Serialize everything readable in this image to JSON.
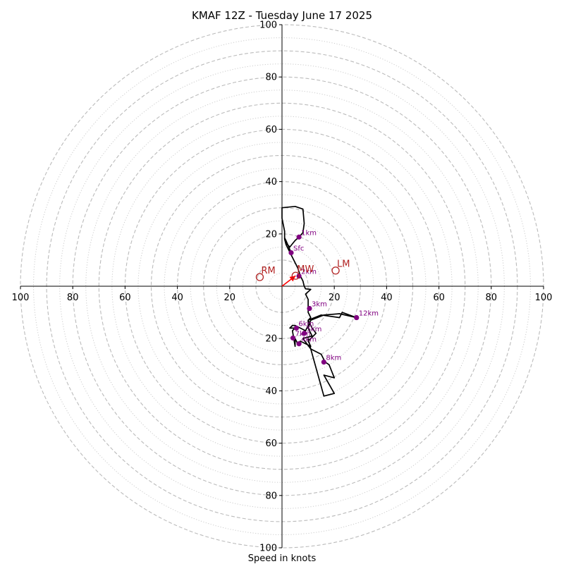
{
  "chart_data": {
    "type": "hodograph",
    "title": "KMAF 12Z - Tuesday June 17 2025",
    "xlabel": "Speed in knots",
    "range": [
      -100,
      100
    ],
    "grid": {
      "dashed_rings": [
        10,
        20,
        30,
        40,
        50,
        60,
        70,
        80,
        90,
        100
      ],
      "dotted_rings": [
        5,
        15,
        25,
        35,
        45,
        55,
        65,
        75,
        85,
        95
      ]
    },
    "axis_ticks": [
      {
        "value": -100,
        "label": "100"
      },
      {
        "value": -80,
        "label": "80"
      },
      {
        "value": -60,
        "label": "60"
      },
      {
        "value": -40,
        "label": "40"
      },
      {
        "value": -20,
        "label": "20"
      },
      {
        "value": 20,
        "label": "20"
      },
      {
        "value": 40,
        "label": "40"
      },
      {
        "value": 60,
        "label": "60"
      },
      {
        "value": 80,
        "label": "80"
      },
      {
        "value": 100,
        "label": "100"
      }
    ],
    "hodograph_trace": [
      [
        3.5,
        12.8
      ],
      [
        1.5,
        17.5
      ],
      [
        1,
        18.5
      ],
      [
        2,
        16
      ],
      [
        3,
        15
      ],
      [
        5,
        17.5
      ],
      [
        6.5,
        18.8
      ],
      [
        8,
        20.5
      ],
      [
        8.5,
        24
      ],
      [
        8,
        29.5
      ],
      [
        5,
        30.5
      ],
      [
        0,
        30
      ],
      [
        0,
        26
      ],
      [
        1,
        21
      ],
      [
        1,
        18
      ],
      [
        1.5,
        16
      ],
      [
        2,
        15
      ],
      [
        4.5,
        10
      ],
      [
        6,
        7
      ],
      [
        7,
        4
      ],
      [
        8,
        2
      ],
      [
        8.5,
        0
      ],
      [
        9,
        -1
      ],
      [
        11,
        -1.2
      ],
      [
        9,
        -3
      ],
      [
        10,
        -5
      ],
      [
        10,
        -10
      ],
      [
        11,
        -12
      ],
      [
        10,
        -13
      ],
      [
        11.5,
        -16
      ],
      [
        13,
        -18
      ],
      [
        10,
        -21
      ],
      [
        11,
        -23
      ],
      [
        7,
        -21
      ],
      [
        6,
        -22
      ],
      [
        5,
        -20
      ],
      [
        5,
        -23
      ],
      [
        4,
        -17
      ],
      [
        5,
        -16
      ],
      [
        3,
        -16
      ],
      [
        4,
        -15
      ],
      [
        5,
        -15
      ],
      [
        7,
        -16
      ],
      [
        9,
        -17
      ],
      [
        10,
        -15
      ],
      [
        10,
        -13
      ],
      [
        15,
        -11
      ],
      [
        22,
        -12
      ],
      [
        23,
        -10
      ],
      [
        28.5,
        -12
      ],
      [
        22,
        -10.5
      ],
      [
        16,
        -11
      ],
      [
        11,
        -13
      ],
      [
        10,
        -16
      ],
      [
        11.5,
        -19
      ],
      [
        8,
        -20
      ],
      [
        11,
        -24
      ],
      [
        15,
        -26
      ],
      [
        16.5,
        -29
      ],
      [
        18,
        -30
      ],
      [
        20,
        -35
      ],
      [
        16,
        -34
      ],
      [
        20,
        -41
      ],
      [
        16,
        -42
      ],
      [
        11,
        -24
      ],
      [
        10,
        -20
      ]
    ],
    "height_markers": [
      {
        "label": "Sfc",
        "u": 3.5,
        "v": 12.8
      },
      {
        "label": "1km",
        "u": 6.5,
        "v": 18.8
      },
      {
        "label": "2km",
        "u": 6.5,
        "v": 3.9
      },
      {
        "label": "3km",
        "u": 10.5,
        "v": -8.5
      },
      {
        "label": "4km",
        "u": 6.5,
        "v": -22
      },
      {
        "label": "5km",
        "u": 8.5,
        "v": -18
      },
      {
        "label": "6km",
        "u": 5.5,
        "v": -16
      },
      {
        "label": "7km",
        "u": 4.2,
        "v": -19.8
      },
      {
        "label": "8km",
        "u": 16,
        "v": -29
      },
      {
        "label": "12km",
        "u": 28.5,
        "v": -12
      }
    ],
    "storm_motion_vector": {
      "u": 5.2,
      "v": 4
    },
    "storm_motions": [
      {
        "label": "RM",
        "u": -8.5,
        "v": 3.5
      },
      {
        "label": "MW",
        "u": 5.2,
        "v": 4
      },
      {
        "label": "LM",
        "u": 20.5,
        "v": 6
      }
    ],
    "colors": {
      "trace": "#000000",
      "markers": "#800080",
      "storm_motion": "#b22222",
      "vector": "#ff0000",
      "grid": "#bbbbbb"
    }
  }
}
